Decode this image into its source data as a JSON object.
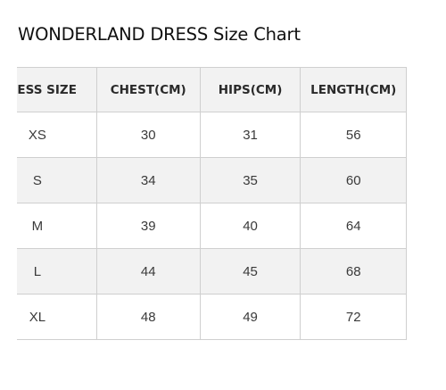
{
  "title": "WONDERLAND DRESS Size Chart",
  "table": {
    "headers": [
      "DRESS SIZE",
      "CHEST(CM)",
      "HIPS(CM)",
      "LENGTH(CM)"
    ],
    "rows": [
      {
        "size": "XS",
        "chest": "30",
        "hips": "31",
        "length": "56"
      },
      {
        "size": "S",
        "chest": "34",
        "hips": "35",
        "length": "60"
      },
      {
        "size": "M",
        "chest": "39",
        "hips": "40",
        "length": "64"
      },
      {
        "size": "L",
        "chest": "44",
        "hips": "45",
        "length": "68"
      },
      {
        "size": "XL",
        "chest": "48",
        "hips": "49",
        "length": "72"
      }
    ]
  },
  "colors": {
    "header_bg": "#f2f2f2",
    "shaded_row_bg": "#f2f2f2",
    "border": "#cfcfcf",
    "text": "#333333"
  }
}
